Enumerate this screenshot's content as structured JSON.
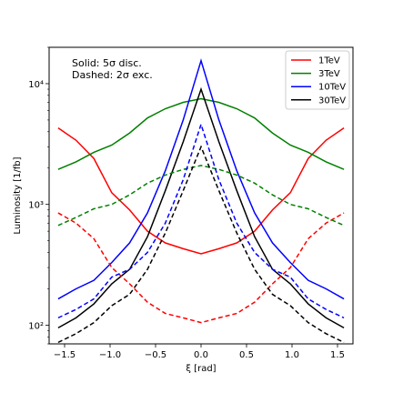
{
  "chart_data": {
    "type": "line",
    "xlabel": "ξ [rad]",
    "ylabel": "Luminosity [1/fb]",
    "yscale": "log",
    "xlim": [
      -1.67,
      1.67
    ],
    "ylim": [
      70,
      20000
    ],
    "grid": false,
    "legend_position": "top-right",
    "annotation": [
      "Solid: 5σ disc.",
      "Dashed: 2σ exc."
    ],
    "xticks": [
      -1.5,
      -1.0,
      -0.5,
      0.0,
      0.5,
      1.0,
      1.5
    ],
    "xtick_labels": [
      "−1.5",
      "−1.0",
      "−0.5",
      "0.0",
      "0.5",
      "1.0",
      "1.5"
    ],
    "yticks": [
      100,
      1000,
      10000
    ],
    "ytick_labels": [
      "10²",
      "10³",
      "10⁴"
    ],
    "x": [
      -1.5708,
      -1.3744,
      -1.1781,
      -0.9817,
      -0.7854,
      -0.589,
      -0.3927,
      -0.1963,
      0.0,
      0.1963,
      0.3927,
      0.589,
      0.7854,
      0.9817,
      1.1781,
      1.3744,
      1.5708
    ],
    "series": [
      {
        "name": "1TeV",
        "style": "solid",
        "color": "#ff0000",
        "values": [
          4300,
          3400,
          2400,
          1250,
          900,
          600,
          480,
          430,
          390,
          430,
          480,
          600,
          900,
          1250,
          2400,
          3400,
          4300
        ]
      },
      {
        "name": "3TeV",
        "style": "solid",
        "color": "#008000",
        "values": [
          1950,
          2250,
          2700,
          3100,
          3900,
          5200,
          6200,
          7000,
          7500,
          7000,
          6200,
          5200,
          3900,
          3100,
          2700,
          2250,
          1950
        ]
      },
      {
        "name": "10TeV",
        "style": "solid",
        "color": "#0000ff",
        "values": [
          165,
          200,
          235,
          330,
          480,
          850,
          1900,
          5000,
          15500,
          5000,
          1900,
          850,
          480,
          330,
          235,
          200,
          165
        ]
      },
      {
        "name": "30TeV",
        "style": "solid",
        "color": "#000000",
        "values": [
          95,
          115,
          150,
          220,
          290,
          540,
          1300,
          3300,
          9000,
          3300,
          1300,
          540,
          290,
          220,
          150,
          115,
          95
        ]
      },
      {
        "name": "",
        "style": "dashed",
        "color": "#ff0000",
        "values": [
          850,
          700,
          520,
          300,
          220,
          155,
          125,
          115,
          105,
          115,
          125,
          155,
          220,
          300,
          520,
          700,
          850
        ]
      },
      {
        "name": "",
        "style": "dashed",
        "color": "#008000",
        "values": [
          670,
          780,
          920,
          1000,
          1200,
          1500,
          1750,
          1950,
          2100,
          1950,
          1750,
          1500,
          1200,
          1000,
          920,
          780,
          670
        ]
      },
      {
        "name": "",
        "style": "dashed",
        "color": "#0000ff",
        "values": [
          115,
          135,
          165,
          250,
          290,
          400,
          700,
          1600,
          4600,
          1600,
          700,
          400,
          290,
          250,
          165,
          135,
          115
        ]
      },
      {
        "name": "",
        "style": "dashed",
        "color": "#000000",
        "values": [
          72,
          85,
          105,
          145,
          180,
          290,
          580,
          1300,
          3000,
          1300,
          580,
          290,
          180,
          145,
          105,
          85,
          72
        ]
      }
    ]
  }
}
